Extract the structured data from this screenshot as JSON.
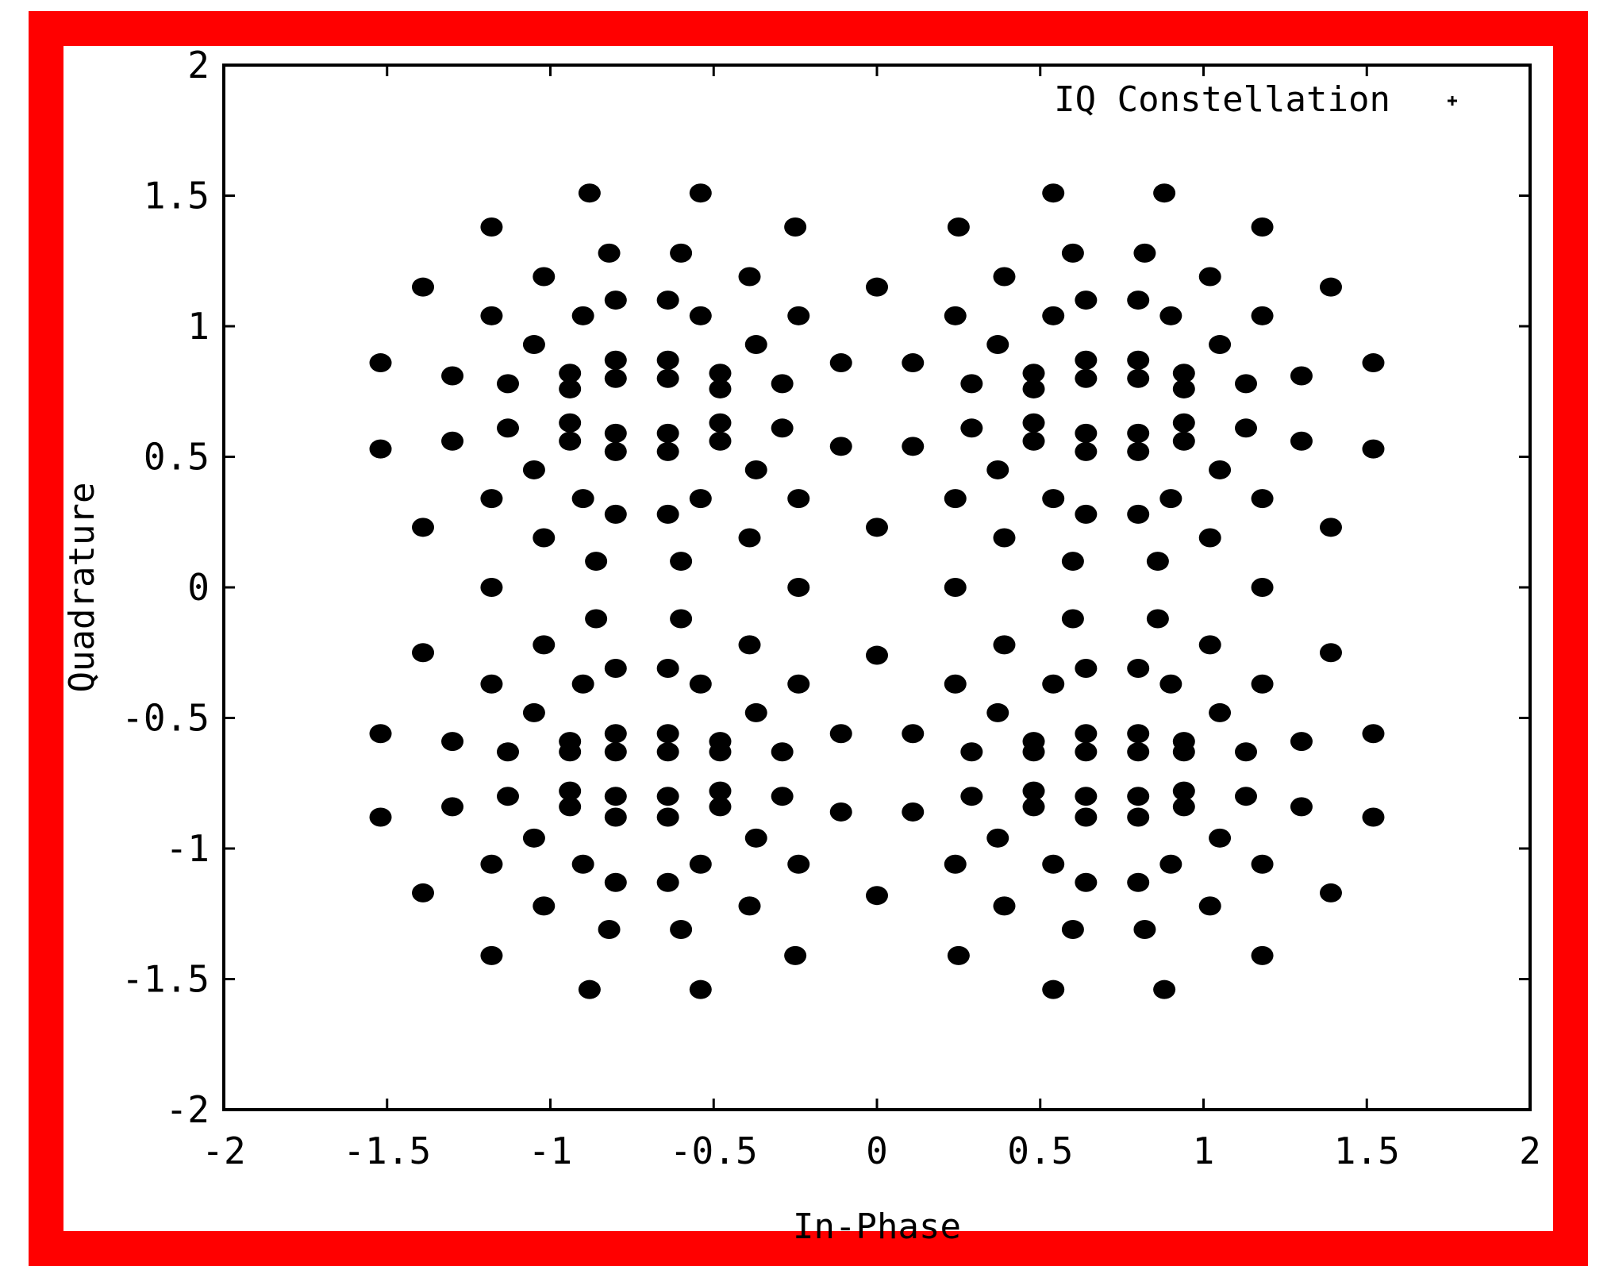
{
  "colors": {
    "frame": "#ff0000",
    "background": "#ffffff",
    "ink": "#000000"
  },
  "chart_data": {
    "type": "scatter",
    "xlabel": "In-Phase",
    "ylabel": "Quadrature",
    "xlim": [
      -2,
      2
    ],
    "ylim": [
      -2,
      2
    ],
    "xticks": [
      -2,
      -1.5,
      -1,
      -0.5,
      0,
      0.5,
      1,
      1.5,
      2
    ],
    "yticks": [
      -2,
      -1.5,
      -1,
      -0.5,
      0,
      0.5,
      1,
      1.5,
      2
    ],
    "xtick_labels": [
      "-2",
      "-1.5",
      "-1",
      "-0.5",
      "0",
      "0.5",
      "1",
      "1.5",
      "2"
    ],
    "ytick_labels": [
      "-2",
      "-1.5",
      "-1",
      "-0.5",
      "0",
      "0.5",
      "1",
      "1.5",
      "2"
    ],
    "grid": false,
    "legend": {
      "position": "top-right",
      "entries": [
        "IQ Constellation"
      ]
    },
    "series": [
      {
        "name": "IQ Constellation",
        "points": [
          [
            -1.52,
            0.86
          ],
          [
            -1.52,
            0.53
          ],
          [
            -1.52,
            -0.56
          ],
          [
            -1.52,
            -0.88
          ],
          [
            -1.39,
            1.15
          ],
          [
            -1.39,
            0.23
          ],
          [
            -1.39,
            -0.25
          ],
          [
            -1.39,
            -1.17
          ],
          [
            -1.3,
            0.81
          ],
          [
            -1.3,
            0.56
          ],
          [
            -1.3,
            -0.59
          ],
          [
            -1.3,
            -0.84
          ],
          [
            -1.18,
            1.38
          ],
          [
            -1.18,
            1.04
          ],
          [
            -1.18,
            0.34
          ],
          [
            -1.18,
            0.0
          ],
          [
            -1.18,
            -0.37
          ],
          [
            -1.18,
            -1.06
          ],
          [
            -1.18,
            -1.41
          ],
          [
            -1.13,
            0.78
          ],
          [
            -1.13,
            0.61
          ],
          [
            -1.13,
            -0.63
          ],
          [
            -1.13,
            -0.8
          ],
          [
            -1.05,
            0.93
          ],
          [
            -1.05,
            0.45
          ],
          [
            -1.05,
            -0.48
          ],
          [
            -1.05,
            -0.96
          ],
          [
            -1.02,
            1.19
          ],
          [
            -1.02,
            0.19
          ],
          [
            -1.02,
            -0.22
          ],
          [
            -1.02,
            -1.22
          ],
          [
            -0.94,
            0.82
          ],
          [
            -0.94,
            0.76
          ],
          [
            -0.94,
            0.63
          ],
          [
            -0.94,
            0.56
          ],
          [
            -0.94,
            -0.59
          ],
          [
            -0.94,
            -0.63
          ],
          [
            -0.94,
            -0.78
          ],
          [
            -0.94,
            -0.84
          ],
          [
            -0.88,
            1.51
          ],
          [
            -0.9,
            1.04
          ],
          [
            -0.9,
            0.34
          ],
          [
            -0.9,
            -0.37
          ],
          [
            -0.9,
            -1.06
          ],
          [
            -0.88,
            -1.54
          ],
          [
            -0.86,
            0.1
          ],
          [
            -0.86,
            -0.12
          ],
          [
            -0.82,
            1.28
          ],
          [
            -0.82,
            -1.31
          ],
          [
            -0.8,
            1.1
          ],
          [
            -0.8,
            0.87
          ],
          [
            -0.8,
            0.8
          ],
          [
            -0.8,
            0.59
          ],
          [
            -0.8,
            0.52
          ],
          [
            -0.8,
            0.28
          ],
          [
            -0.8,
            -0.31
          ],
          [
            -0.8,
            -0.56
          ],
          [
            -0.8,
            -0.63
          ],
          [
            -0.8,
            -0.8
          ],
          [
            -0.8,
            -0.88
          ],
          [
            -0.8,
            -1.13
          ],
          [
            -0.64,
            1.1
          ],
          [
            -0.64,
            0.87
          ],
          [
            -0.64,
            0.8
          ],
          [
            -0.64,
            0.59
          ],
          [
            -0.64,
            0.52
          ],
          [
            -0.64,
            0.28
          ],
          [
            -0.64,
            -0.31
          ],
          [
            -0.64,
            -0.56
          ],
          [
            -0.64,
            -0.63
          ],
          [
            -0.64,
            -0.8
          ],
          [
            -0.64,
            -0.88
          ],
          [
            -0.64,
            -1.13
          ],
          [
            -0.6,
            1.28
          ],
          [
            -0.6,
            0.1
          ],
          [
            -0.6,
            -0.12
          ],
          [
            -0.6,
            -1.31
          ],
          [
            -0.54,
            1.51
          ],
          [
            -0.54,
            1.04
          ],
          [
            -0.54,
            0.34
          ],
          [
            -0.54,
            -0.37
          ],
          [
            -0.54,
            -1.06
          ],
          [
            -0.54,
            -1.54
          ],
          [
            -0.48,
            0.82
          ],
          [
            -0.48,
            0.76
          ],
          [
            -0.48,
            0.63
          ],
          [
            -0.48,
            0.56
          ],
          [
            -0.48,
            -0.59
          ],
          [
            -0.48,
            -0.63
          ],
          [
            -0.48,
            -0.78
          ],
          [
            -0.48,
            -0.84
          ],
          [
            -0.39,
            1.19
          ],
          [
            -0.39,
            0.19
          ],
          [
            -0.39,
            -0.22
          ],
          [
            -0.39,
            -1.22
          ],
          [
            -0.37,
            0.93
          ],
          [
            -0.37,
            0.45
          ],
          [
            -0.37,
            -0.48
          ],
          [
            -0.37,
            -0.96
          ],
          [
            -0.29,
            0.78
          ],
          [
            -0.29,
            0.61
          ],
          [
            -0.29,
            -0.63
          ],
          [
            -0.29,
            -0.8
          ],
          [
            -0.25,
            1.38
          ],
          [
            -0.24,
            1.04
          ],
          [
            -0.24,
            0.34
          ],
          [
            -0.24,
            0.0
          ],
          [
            -0.24,
            -0.37
          ],
          [
            -0.24,
            -1.06
          ],
          [
            -0.25,
            -1.41
          ],
          [
            -0.11,
            0.86
          ],
          [
            -0.11,
            0.54
          ],
          [
            -0.11,
            -0.56
          ],
          [
            -0.11,
            -0.86
          ],
          [
            0.0,
            1.15
          ],
          [
            0.0,
            0.23
          ],
          [
            0.0,
            -0.26
          ],
          [
            0.0,
            -1.18
          ],
          [
            0.11,
            0.86
          ],
          [
            0.11,
            0.54
          ],
          [
            0.11,
            -0.56
          ],
          [
            0.11,
            -0.86
          ],
          [
            0.25,
            1.38
          ],
          [
            0.24,
            1.04
          ],
          [
            0.24,
            0.34
          ],
          [
            0.24,
            0.0
          ],
          [
            0.24,
            -0.37
          ],
          [
            0.24,
            -1.06
          ],
          [
            0.25,
            -1.41
          ],
          [
            0.29,
            0.78
          ],
          [
            0.29,
            0.61
          ],
          [
            0.29,
            -0.63
          ],
          [
            0.29,
            -0.8
          ],
          [
            0.37,
            0.93
          ],
          [
            0.37,
            0.45
          ],
          [
            0.37,
            -0.48
          ],
          [
            0.37,
            -0.96
          ],
          [
            0.39,
            1.19
          ],
          [
            0.39,
            0.19
          ],
          [
            0.39,
            -0.22
          ],
          [
            0.39,
            -1.22
          ],
          [
            0.48,
            0.82
          ],
          [
            0.48,
            0.76
          ],
          [
            0.48,
            0.63
          ],
          [
            0.48,
            0.56
          ],
          [
            0.48,
            -0.59
          ],
          [
            0.48,
            -0.63
          ],
          [
            0.48,
            -0.78
          ],
          [
            0.48,
            -0.84
          ],
          [
            0.54,
            1.51
          ],
          [
            0.54,
            1.04
          ],
          [
            0.54,
            0.34
          ],
          [
            0.54,
            -0.37
          ],
          [
            0.54,
            -1.06
          ],
          [
            0.54,
            -1.54
          ],
          [
            0.6,
            1.28
          ],
          [
            0.6,
            0.1
          ],
          [
            0.6,
            -0.12
          ],
          [
            0.6,
            -1.31
          ],
          [
            0.64,
            1.1
          ],
          [
            0.64,
            0.87
          ],
          [
            0.64,
            0.8
          ],
          [
            0.64,
            0.59
          ],
          [
            0.64,
            0.52
          ],
          [
            0.64,
            0.28
          ],
          [
            0.64,
            -0.31
          ],
          [
            0.64,
            -0.56
          ],
          [
            0.64,
            -0.63
          ],
          [
            0.64,
            -0.8
          ],
          [
            0.64,
            -0.88
          ],
          [
            0.64,
            -1.13
          ],
          [
            0.8,
            1.1
          ],
          [
            0.8,
            0.87
          ],
          [
            0.8,
            0.8
          ],
          [
            0.8,
            0.59
          ],
          [
            0.8,
            0.52
          ],
          [
            0.8,
            0.28
          ],
          [
            0.8,
            -0.31
          ],
          [
            0.8,
            -0.56
          ],
          [
            0.8,
            -0.63
          ],
          [
            0.8,
            -0.8
          ],
          [
            0.8,
            -0.88
          ],
          [
            0.8,
            -1.13
          ],
          [
            0.82,
            1.28
          ],
          [
            0.82,
            -1.31
          ],
          [
            0.86,
            0.1
          ],
          [
            0.86,
            -0.12
          ],
          [
            0.88,
            1.51
          ],
          [
            0.9,
            1.04
          ],
          [
            0.9,
            0.34
          ],
          [
            0.9,
            -0.37
          ],
          [
            0.9,
            -1.06
          ],
          [
            0.88,
            -1.54
          ],
          [
            0.94,
            0.82
          ],
          [
            0.94,
            0.76
          ],
          [
            0.94,
            0.63
          ],
          [
            0.94,
            0.56
          ],
          [
            0.94,
            -0.59
          ],
          [
            0.94,
            -0.63
          ],
          [
            0.94,
            -0.78
          ],
          [
            0.94,
            -0.84
          ],
          [
            1.02,
            1.19
          ],
          [
            1.02,
            0.19
          ],
          [
            1.02,
            -0.22
          ],
          [
            1.02,
            -1.22
          ],
          [
            1.05,
            0.93
          ],
          [
            1.05,
            0.45
          ],
          [
            1.05,
            -0.48
          ],
          [
            1.05,
            -0.96
          ],
          [
            1.13,
            0.78
          ],
          [
            1.13,
            0.61
          ],
          [
            1.13,
            -0.63
          ],
          [
            1.13,
            -0.8
          ],
          [
            1.18,
            1.38
          ],
          [
            1.18,
            1.04
          ],
          [
            1.18,
            0.34
          ],
          [
            1.18,
            0.0
          ],
          [
            1.18,
            -0.37
          ],
          [
            1.18,
            -1.06
          ],
          [
            1.18,
            -1.41
          ],
          [
            1.3,
            0.81
          ],
          [
            1.3,
            0.56
          ],
          [
            1.3,
            -0.59
          ],
          [
            1.3,
            -0.84
          ],
          [
            1.39,
            1.15
          ],
          [
            1.39,
            0.23
          ],
          [
            1.39,
            -0.25
          ],
          [
            1.39,
            -1.17
          ],
          [
            1.52,
            0.86
          ],
          [
            1.52,
            0.53
          ],
          [
            1.52,
            -0.56
          ],
          [
            1.52,
            -0.88
          ]
        ]
      }
    ]
  }
}
